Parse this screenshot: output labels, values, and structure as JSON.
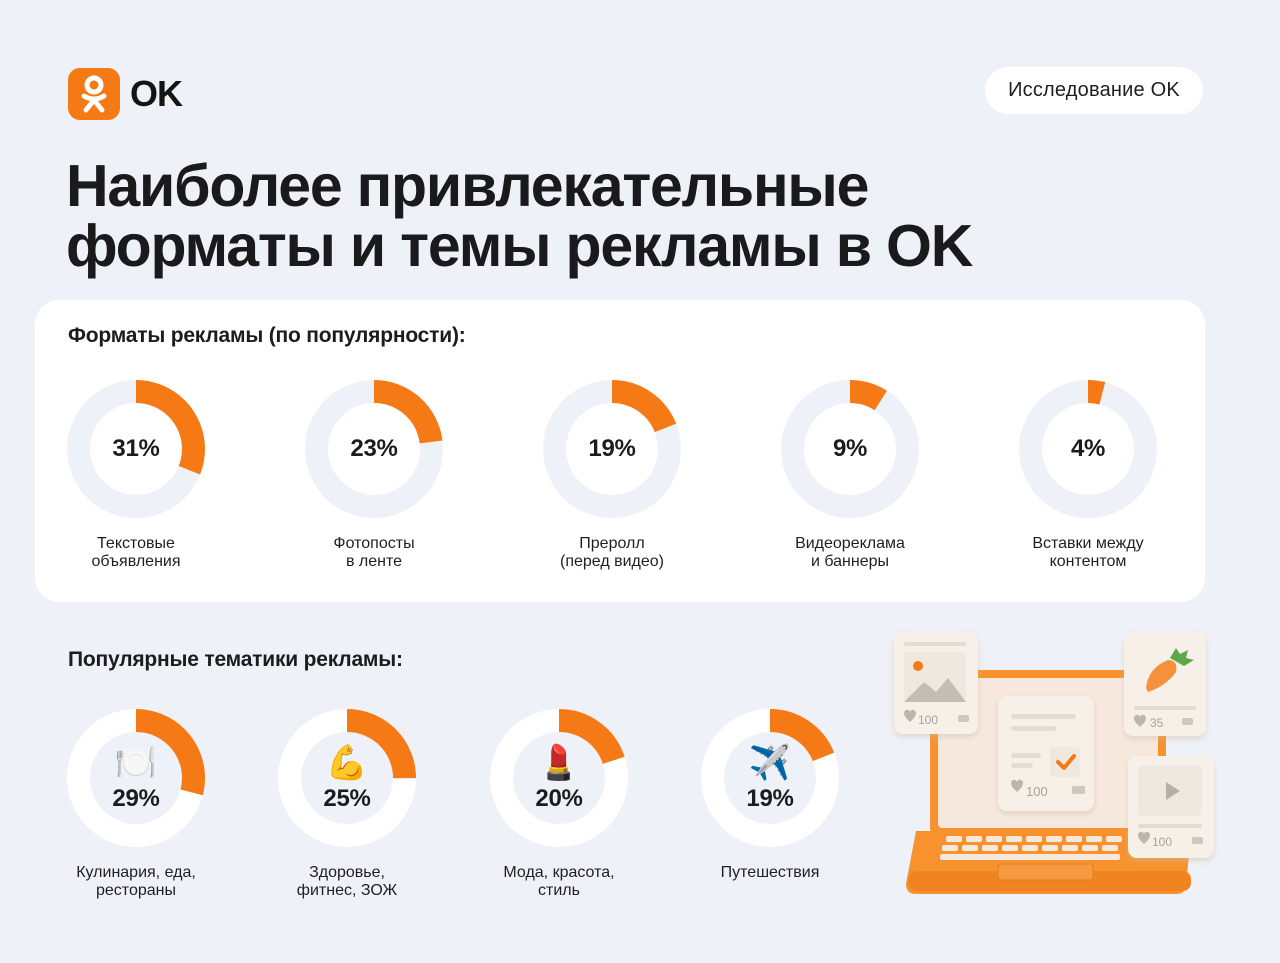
{
  "brand": {
    "logo_text": "OK",
    "accent_color": "#f57a16",
    "badge_label": "Исследование OK"
  },
  "page": {
    "title_line1": "Наиболее привлекательные",
    "title_line2": "форматы и темы рекламы в OK"
  },
  "formats": {
    "heading": "Форматы рекламы (по популярности):",
    "items": [
      {
        "value": 31,
        "display": "31%",
        "label": "Текстовые\nобъявления"
      },
      {
        "value": 23,
        "display": "23%",
        "label": "Фотопосты\nв ленте"
      },
      {
        "value": 19,
        "display": "19%",
        "label": "Преролл\n(перед видео)"
      },
      {
        "value": 9,
        "display": "9%",
        "label": "Видеореклама\nи баннеры"
      },
      {
        "value": 4,
        "display": "4%",
        "label": "Вставки между\nконтентом"
      }
    ]
  },
  "topics": {
    "heading": "Популярные тематики рекламы:",
    "items": [
      {
        "value": 29,
        "display": "29%",
        "icon": "🍽️",
        "icon_name": "plate-cutlery-icon",
        "label": "Кулинария, еда,\nрестораны"
      },
      {
        "value": 25,
        "display": "25%",
        "icon": "💪",
        "icon_name": "flexed-biceps-icon",
        "label": "Здоровье,\nфитнес, ЗОЖ"
      },
      {
        "value": 20,
        "display": "20%",
        "icon": "💄",
        "icon_name": "lipstick-icon",
        "label": "Мода, красота,\nстиль"
      },
      {
        "value": 19,
        "display": "19%",
        "icon": "✈️",
        "icon_name": "airplane-icon",
        "label": "Путешествия"
      }
    ]
  },
  "illustration": {
    "card_left_likes": "100",
    "card_center_likes": "100",
    "card_right_top_likes": "35",
    "card_right_bottom_likes": "100"
  },
  "chart_data": [
    {
      "type": "pie",
      "title": "Форматы рекламы (по популярности):",
      "categories": [
        "Текстовые объявления",
        "Фотопосты в ленте",
        "Преролл (перед видео)",
        "Видеореклама и баннеры",
        "Вставки между контентом"
      ],
      "values": [
        31,
        23,
        19,
        9,
        4
      ],
      "unit": "%",
      "style": "separate donut per category"
    },
    {
      "type": "pie",
      "title": "Популярные тематики рекламы:",
      "categories": [
        "Кулинария, еда, рестораны",
        "Здоровье, фитнес, ЗОЖ",
        "Мода, красота, стиль",
        "Путешествия"
      ],
      "values": [
        29,
        25,
        20,
        19
      ],
      "unit": "%",
      "style": "separate donut per category"
    }
  ]
}
